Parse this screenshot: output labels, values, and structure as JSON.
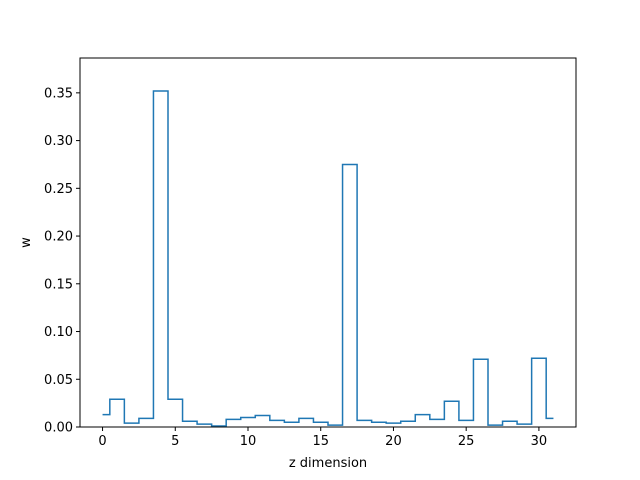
{
  "chart_data": {
    "type": "line",
    "drawstyle": "steps-mid",
    "title": "",
    "xlabel": "z dimension",
    "ylabel": "w",
    "xlim": [
      -1.55,
      32.55
    ],
    "ylim": [
      0,
      0.3865
    ],
    "xticks": [
      0,
      5,
      10,
      15,
      20,
      25,
      30
    ],
    "yticks": [
      0.0,
      0.05,
      0.1,
      0.15,
      0.2,
      0.25,
      0.3,
      0.35
    ],
    "ytick_labels": [
      "0.00",
      "0.05",
      "0.10",
      "0.15",
      "0.20",
      "0.25",
      "0.30",
      "0.35"
    ],
    "grid": false,
    "line_color": "#1f77b4",
    "x": [
      0,
      1,
      2,
      3,
      4,
      5,
      6,
      7,
      8,
      9,
      10,
      11,
      12,
      13,
      14,
      15,
      16,
      17,
      18,
      19,
      20,
      21,
      22,
      23,
      24,
      25,
      26,
      27,
      28,
      29,
      30,
      31
    ],
    "y": [
      0.013,
      0.029,
      0.004,
      0.009,
      0.352,
      0.029,
      0.006,
      0.003,
      0.001,
      0.008,
      0.01,
      0.012,
      0.007,
      0.005,
      0.009,
      0.005,
      0.002,
      0.275,
      0.007,
      0.005,
      0.004,
      0.006,
      0.013,
      0.008,
      0.027,
      0.007,
      0.071,
      0.002,
      0.006,
      0.003,
      0.072,
      0.009
    ]
  }
}
